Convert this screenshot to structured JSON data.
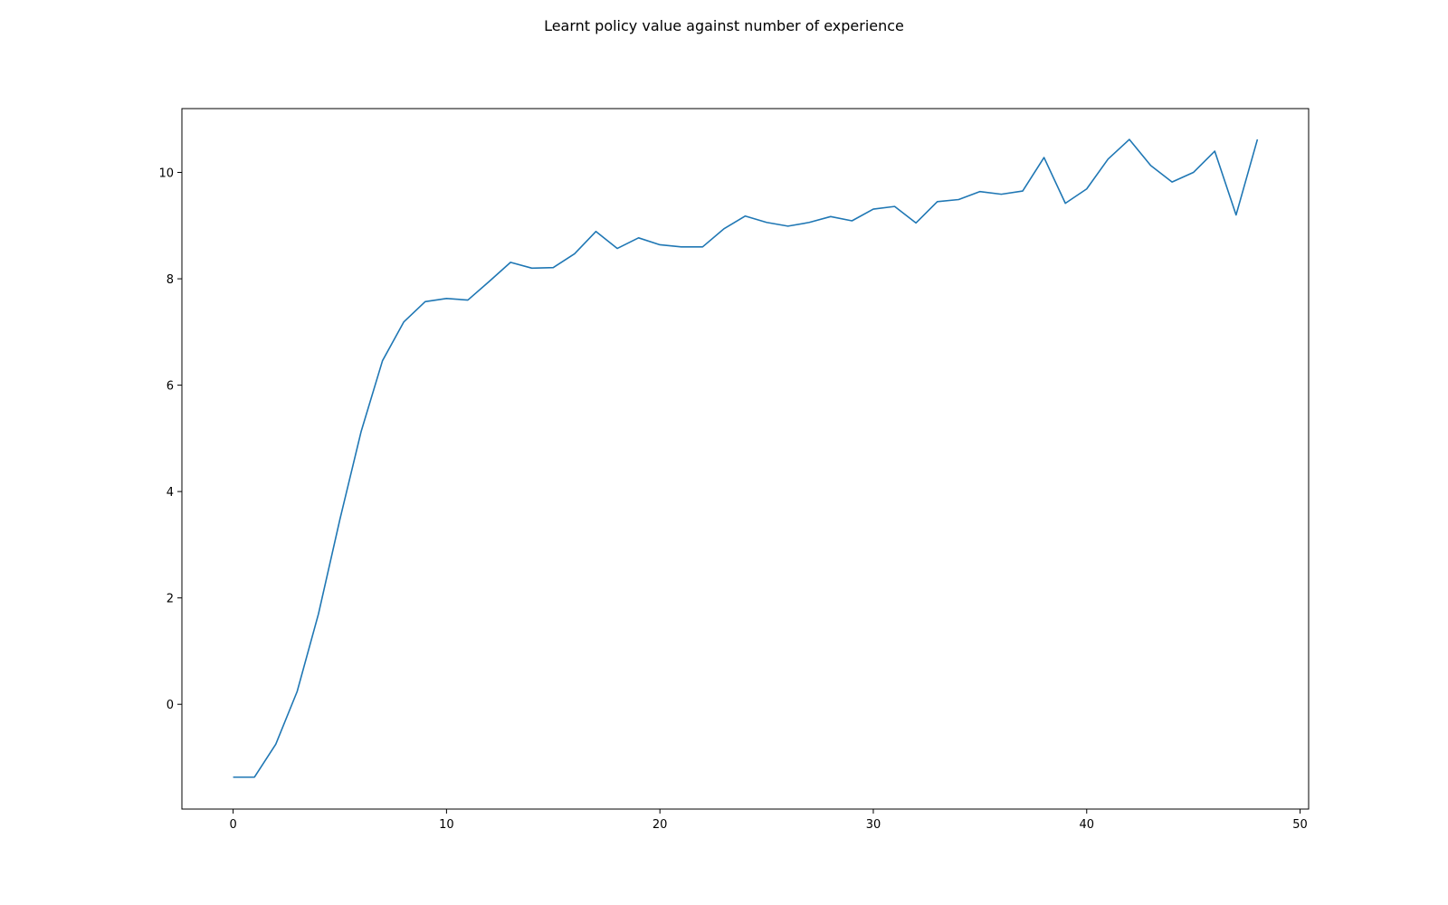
{
  "chart_data": {
    "type": "line",
    "title": "Learnt policy value against number of experience",
    "xlabel": "",
    "ylabel": "",
    "xlim": [
      -2.4,
      50.4
    ],
    "ylim": [
      -1.97,
      11.2
    ],
    "xticks": [
      0,
      10,
      20,
      30,
      40,
      50
    ],
    "yticks": [
      0,
      2,
      4,
      6,
      8,
      10
    ],
    "grid": false,
    "legend": "none",
    "series": [
      {
        "color": "#1f77b4",
        "x": [
          0,
          1,
          2,
          3,
          4,
          5,
          6,
          7,
          8,
          9,
          10,
          11,
          12,
          13,
          14,
          15,
          16,
          17,
          18,
          19,
          20,
          21,
          22,
          23,
          24,
          25,
          26,
          27,
          28,
          29,
          30,
          31,
          32,
          33,
          34,
          35,
          36,
          37,
          38,
          39,
          40,
          41,
          42,
          43,
          44,
          45,
          46,
          47,
          48
        ],
        "y": [
          -1.37,
          -1.37,
          -0.75,
          0.24,
          1.7,
          3.47,
          5.13,
          6.46,
          7.19,
          7.57,
          7.63,
          7.6,
          7.95,
          8.31,
          8.2,
          8.21,
          8.47,
          8.89,
          8.57,
          8.77,
          8.64,
          8.6,
          8.6,
          8.94,
          9.18,
          9.06,
          8.99,
          9.06,
          9.17,
          9.09,
          9.31,
          9.36,
          9.05,
          9.45,
          9.49,
          9.64,
          9.59,
          9.65,
          10.28,
          9.42,
          9.69,
          10.25,
          10.62,
          10.13,
          9.82,
          10.0,
          10.4,
          9.2,
          10.62
        ]
      }
    ]
  }
}
